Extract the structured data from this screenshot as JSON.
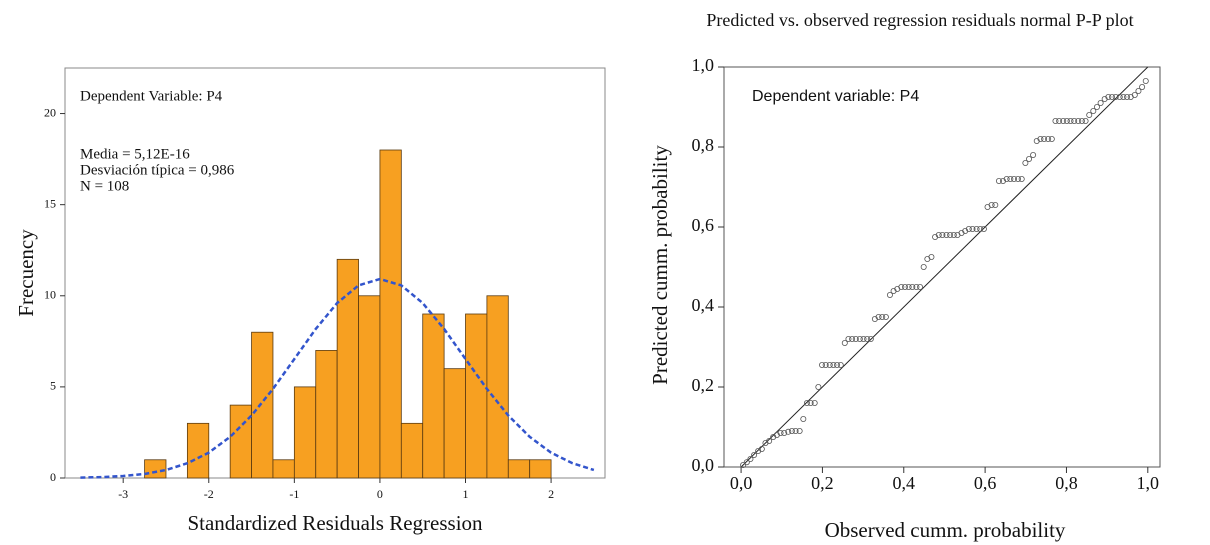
{
  "chart_data": [
    {
      "type": "histogram",
      "annotations": [
        "Dependent Variable: P4",
        "Media = 5,12E-16",
        "Desviación típica = 0,986",
        "N = 108"
      ],
      "x_label": "Standardized Residuals Regression",
      "y_label": "Frecuency",
      "bins": [
        -2.75,
        -2.5,
        -2.25,
        -2.0,
        -1.75,
        -1.5,
        -1.25,
        -1.0,
        -0.75,
        -0.5,
        -0.25,
        0.0,
        0.25,
        0.5,
        0.75,
        1.0,
        1.25,
        1.5,
        1.75,
        2.0
      ],
      "values": [
        1,
        0,
        3,
        0,
        4,
        8,
        1,
        5,
        7,
        12,
        10,
        18,
        3,
        9,
        6,
        9,
        10,
        1,
        1
      ],
      "color": "#f7a021",
      "curve": {
        "color": "#3355cc",
        "x": [
          -3.5,
          -3.25,
          -3.0,
          -2.75,
          -2.5,
          -2.25,
          -2.0,
          -1.75,
          -1.5,
          -1.25,
          -1.0,
          -0.75,
          -0.5,
          -0.25,
          0.0,
          0.25,
          0.5,
          0.75,
          1.0,
          1.25,
          1.5,
          1.75,
          2.0,
          2.25,
          2.5
        ],
        "values": [
          0.02,
          0.05,
          0.11,
          0.22,
          0.44,
          0.81,
          1.39,
          2.26,
          3.43,
          4.89,
          6.53,
          8.18,
          9.6,
          10.57,
          10.92,
          10.57,
          9.6,
          8.18,
          6.53,
          4.89,
          3.43,
          2.26,
          1.39,
          0.81,
          0.44
        ]
      },
      "xlim": [
        -3.68,
        2.63
      ],
      "xticks": [
        -3,
        -2,
        -1,
        0,
        1,
        2
      ],
      "ylim": [
        0,
        22.5
      ],
      "yticks": [
        0,
        5,
        10,
        15,
        20
      ]
    },
    {
      "type": "scatter",
      "title": "Predicted vs. observed regression residuals normal P-P plot",
      "annotation": "Dependent variable: P4",
      "x_label": "Observed cumm. probability",
      "y_label": "Predicted cumm. probability",
      "reference_line": true,
      "color": "#555555",
      "x": [
        0.005,
        0.014,
        0.023,
        0.032,
        0.042,
        0.051,
        0.06,
        0.069,
        0.079,
        0.088,
        0.097,
        0.106,
        0.116,
        0.125,
        0.134,
        0.144,
        0.153,
        0.162,
        0.171,
        0.181,
        0.19,
        0.199,
        0.208,
        0.218,
        0.227,
        0.236,
        0.245,
        0.255,
        0.264,
        0.273,
        0.282,
        0.292,
        0.301,
        0.31,
        0.319,
        0.329,
        0.338,
        0.347,
        0.356,
        0.366,
        0.375,
        0.384,
        0.394,
        0.403,
        0.412,
        0.421,
        0.431,
        0.44,
        0.449,
        0.458,
        0.468,
        0.477,
        0.486,
        0.495,
        0.505,
        0.514,
        0.523,
        0.532,
        0.542,
        0.551,
        0.56,
        0.569,
        0.579,
        0.588,
        0.597,
        0.606,
        0.616,
        0.625,
        0.634,
        0.644,
        0.653,
        0.662,
        0.671,
        0.681,
        0.69,
        0.699,
        0.708,
        0.718,
        0.727,
        0.736,
        0.745,
        0.755,
        0.764,
        0.773,
        0.782,
        0.792,
        0.801,
        0.81,
        0.819,
        0.829,
        0.838,
        0.847,
        0.856,
        0.866,
        0.875,
        0.884,
        0.894,
        0.903,
        0.912,
        0.921,
        0.931,
        0.94,
        0.949,
        0.958,
        0.968,
        0.977,
        0.986,
        0.995
      ],
      "values": [
        0.005,
        0.012,
        0.02,
        0.03,
        0.04,
        0.045,
        0.06,
        0.065,
        0.075,
        0.08,
        0.085,
        0.085,
        0.088,
        0.09,
        0.09,
        0.09,
        0.12,
        0.16,
        0.16,
        0.16,
        0.2,
        0.255,
        0.255,
        0.255,
        0.255,
        0.255,
        0.255,
        0.31,
        0.32,
        0.32,
        0.32,
        0.32,
        0.32,
        0.32,
        0.32,
        0.37,
        0.375,
        0.375,
        0.375,
        0.43,
        0.44,
        0.445,
        0.45,
        0.45,
        0.45,
        0.45,
        0.45,
        0.45,
        0.5,
        0.52,
        0.525,
        0.575,
        0.58,
        0.58,
        0.58,
        0.58,
        0.58,
        0.58,
        0.585,
        0.59,
        0.595,
        0.595,
        0.595,
        0.595,
        0.595,
        0.65,
        0.655,
        0.655,
        0.715,
        0.715,
        0.72,
        0.72,
        0.72,
        0.72,
        0.72,
        0.76,
        0.77,
        0.78,
        0.815,
        0.82,
        0.82,
        0.82,
        0.82,
        0.865,
        0.865,
        0.865,
        0.865,
        0.865,
        0.865,
        0.865,
        0.865,
        0.865,
        0.88,
        0.89,
        0.9,
        0.91,
        0.92,
        0.925,
        0.925,
        0.925,
        0.925,
        0.925,
        0.925,
        0.925,
        0.93,
        0.94,
        0.95,
        0.965
      ],
      "xlim": [
        -0.042,
        1.03
      ],
      "xticks": [
        {
          "value": 0,
          "label": "0,0"
        },
        {
          "value": 0.2,
          "label": "0,2"
        },
        {
          "value": 0.4,
          "label": "0,4"
        },
        {
          "value": 0.6,
          "label": "0,6"
        },
        {
          "value": 0.8,
          "label": "0,8"
        },
        {
          "value": 1,
          "label": "1,0"
        }
      ],
      "ylim": [
        0,
        1
      ],
      "yticks": [
        {
          "value": 0,
          "label": "0,0"
        },
        {
          "value": 0.2,
          "label": "0,2"
        },
        {
          "value": 0.4,
          "label": "0,4"
        },
        {
          "value": 0.6,
          "label": "0,6"
        },
        {
          "value": 0.8,
          "label": "0,8"
        },
        {
          "value": 1,
          "label": "1,0"
        }
      ]
    }
  ]
}
